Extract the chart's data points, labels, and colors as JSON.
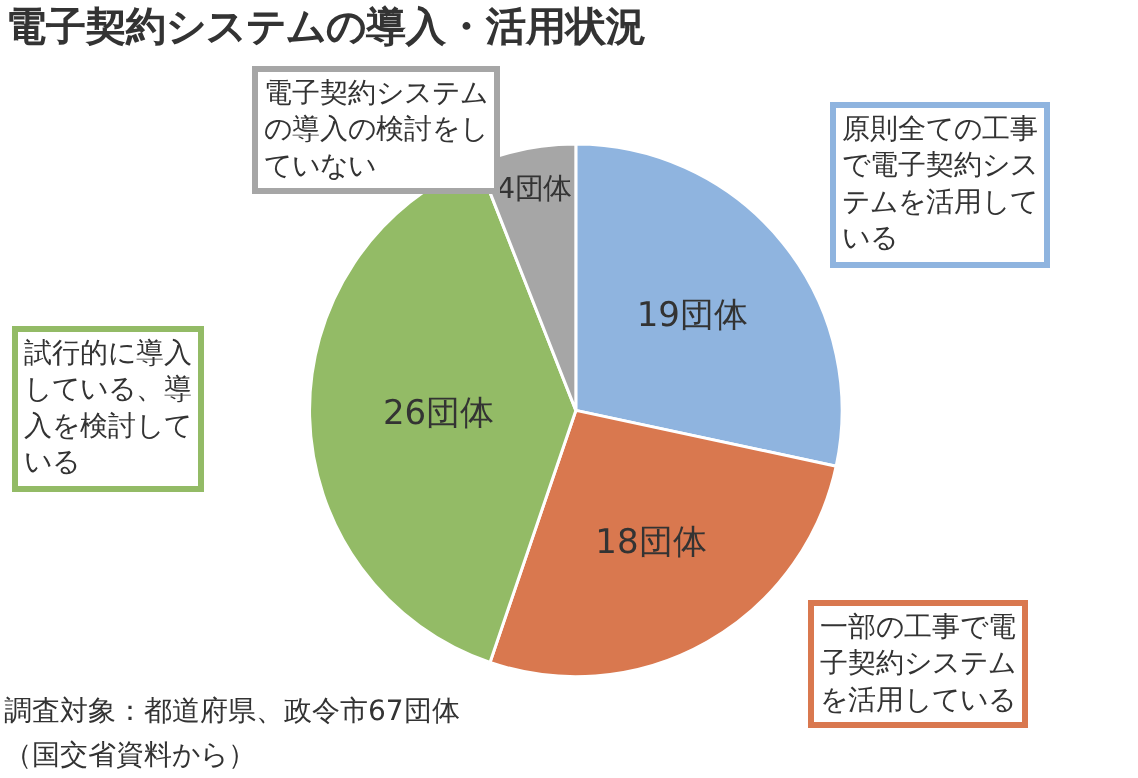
{
  "chart_data": {
    "type": "pie",
    "title": "電子契約システムの導入・活用状況",
    "categories": [
      "原則全ての工事で電子契約システムを活用している",
      "一部の工事で電子契約システムを活用している",
      "試行的に導入している、導入を検討している",
      "電子契約システムの導入の検討をしていない"
    ],
    "values": [
      19,
      18,
      26,
      4
    ],
    "value_labels": [
      "19団体",
      "18団体",
      "26団体",
      "4団体"
    ],
    "colors": [
      "#8fb4df",
      "#d9784f",
      "#93bb66",
      "#a6a6a6"
    ],
    "legend": false,
    "annotations": [
      "調査対象：都道府県、政令市67団体",
      "（国交省資料から）"
    ]
  }
}
